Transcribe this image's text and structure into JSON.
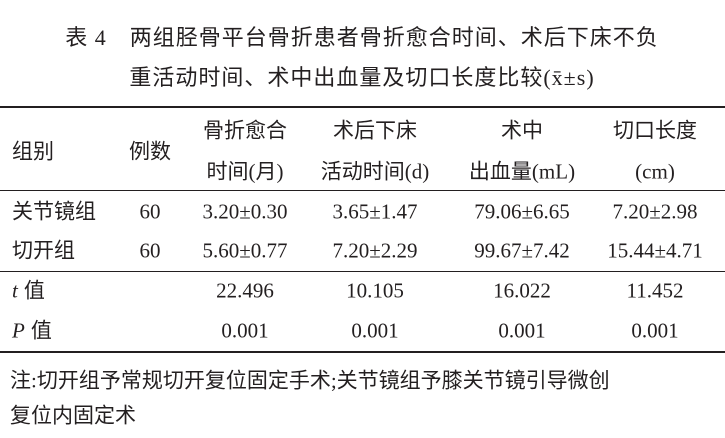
{
  "title": {
    "lines": [
      "表 4　两组胫骨平台骨折患者骨折愈合时间、术后下床不负",
      "重活动时间、术中出血量及切口长度比较(x̄±s)"
    ]
  },
  "table": {
    "header": [
      [
        "组别"
      ],
      [
        "例数"
      ],
      [
        "骨折愈合",
        "时间(月)"
      ],
      [
        "术后下床",
        "活动时间(d)"
      ],
      [
        "术中",
        "出血量(mL)"
      ],
      [
        "切口长度",
        "(cm)"
      ]
    ],
    "rows": [
      [
        "关节镜组",
        "60",
        "3.20±0.30",
        "3.65±1.47",
        "79.06±6.65",
        "7.20±2.98"
      ],
      [
        "切开组",
        "60",
        "5.60±0.77",
        "7.20±2.29",
        "99.67±7.42",
        "15.44±4.71"
      ]
    ],
    "stats": [
      {
        "symbol": "t",
        "label": "值",
        "cells": [
          "22.496",
          "10.105",
          "16.022",
          "11.452"
        ]
      },
      {
        "symbol": "P",
        "label": "值",
        "cells": [
          "0.001",
          "0.001",
          "0.001",
          "0.001"
        ]
      }
    ]
  },
  "note": {
    "lines": [
      "注:切开组予常规切开复位固定手术;关节镜组予膝关节镜引导微创",
      "复位内固定术"
    ]
  }
}
